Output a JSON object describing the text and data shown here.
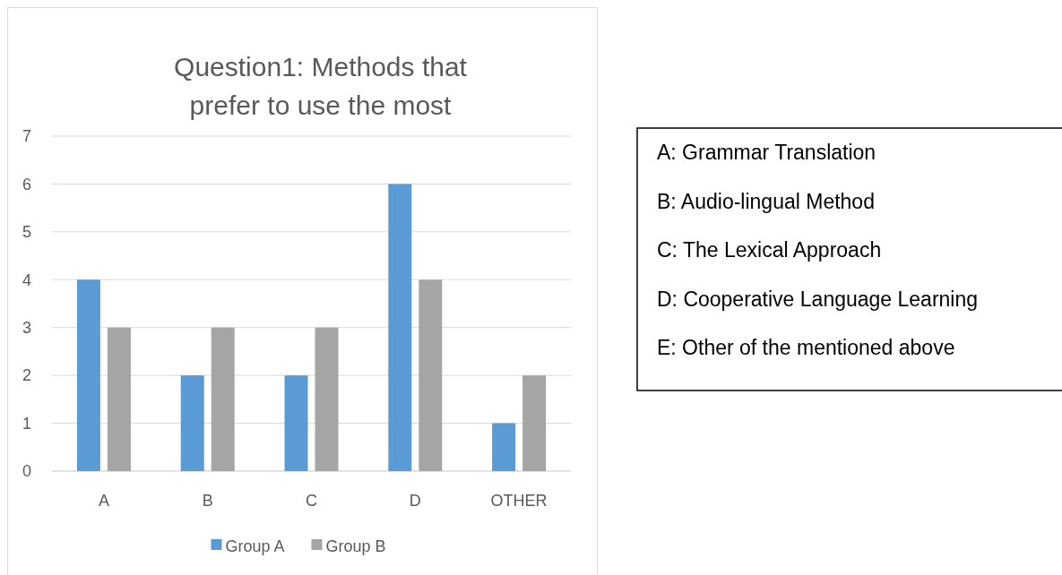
{
  "chart_data": {
    "type": "bar",
    "title": "Question1: Methods that prefer to use the most",
    "categories": [
      "A",
      "B",
      "C",
      "D",
      "OTHER"
    ],
    "series": [
      {
        "name": "Group A",
        "color": "#5b9bd5",
        "values": [
          4,
          2,
          2,
          6,
          1
        ]
      },
      {
        "name": "Group B",
        "color": "#a5a5a5",
        "values": [
          3,
          3,
          3,
          4,
          2
        ]
      }
    ],
    "ylim": [
      0,
      7
    ],
    "yticks": [
      0,
      1,
      2,
      3,
      4,
      5,
      6,
      7
    ],
    "grid": "y",
    "legend": "bottom",
    "annotations": [
      "A: Grammar Translation",
      "B: Audio-lingual Method",
      "C: The Lexical Approach",
      "D: Cooperative Language Learning",
      "E: Other of the mentioned above"
    ]
  }
}
